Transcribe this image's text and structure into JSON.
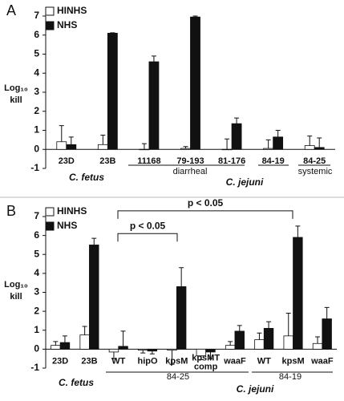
{
  "chart_data": [
    {
      "type": "bar",
      "panel": "A",
      "y_label": [
        "Log₁₀",
        "kill"
      ],
      "categories": [
        "23D",
        "23B",
        "11168",
        "79-193",
        "81-176",
        "84-19",
        "84-25"
      ],
      "series": [
        {
          "name": "HINHS",
          "color": "#ffffff",
          "values": [
            0.4,
            0.25,
            0.0,
            0.05,
            0.0,
            0.05,
            0.2
          ],
          "errors": [
            0.85,
            0.5,
            0.3,
            0.1,
            0.55,
            0.45,
            0.5
          ]
        },
        {
          "name": "NHS",
          "color": "#111111",
          "values": [
            0.25,
            6.1,
            4.6,
            6.95,
            1.35,
            0.65,
            0.1
          ],
          "errors": [
            0.4,
            0.02,
            0.3,
            0.05,
            0.3,
            0.35,
            0.5
          ]
        }
      ],
      "groups": [
        "C. fetus",
        "diarrheal",
        "C. jejuni",
        "systemic"
      ],
      "ylim": [
        -1,
        7
      ],
      "yticks": [
        -1,
        0,
        1,
        2,
        3,
        4,
        5,
        6,
        7
      ],
      "legend": "top-left"
    },
    {
      "type": "bar",
      "panel": "B",
      "y_label": [
        "Log₁₀",
        "kill"
      ],
      "categories": [
        "23D",
        "23B",
        "WT",
        "hipO",
        "kpsM",
        "kpsMT comp",
        "waaF",
        "WT",
        "kpsM",
        "waaF"
      ],
      "series": [
        {
          "name": "HINHS",
          "color": "#ffffff",
          "values": [
            0.2,
            0.75,
            -0.15,
            -0.05,
            -0.05,
            -0.35,
            0.2,
            0.5,
            0.7,
            0.3
          ],
          "errors": [
            0.2,
            0.45,
            0.35,
            0.15,
            0.75,
            0.2,
            0.2,
            0.35,
            1.2,
            0.35
          ]
        },
        {
          "name": "NHS",
          "color": "#111111",
          "values": [
            0.35,
            5.5,
            0.15,
            -0.1,
            3.3,
            -0.15,
            0.95,
            1.1,
            5.9,
            1.6
          ],
          "errors": [
            0.35,
            0.35,
            0.8,
            0.15,
            1.0,
            0.35,
            0.3,
            0.35,
            0.6,
            0.6
          ]
        }
      ],
      "groups": [
        "C. fetus",
        "84-25",
        "C. jejuni",
        "84-19"
      ],
      "annotations": [
        "p < 0.05",
        "p < 0.05"
      ],
      "ylim": [
        -1,
        7
      ],
      "yticks": [
        -1,
        0,
        1,
        2,
        3,
        4,
        5,
        6,
        7
      ],
      "legend": "top-left"
    }
  ]
}
